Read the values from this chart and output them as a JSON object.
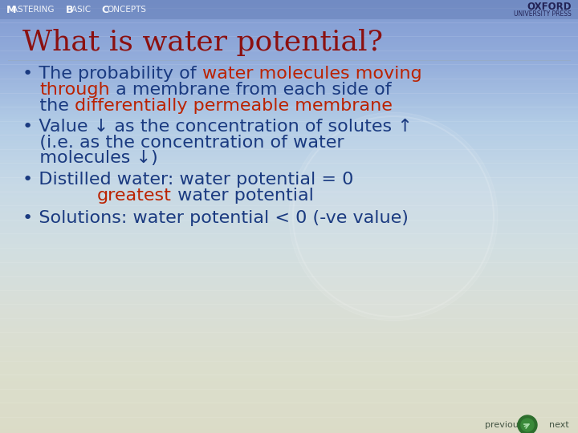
{
  "title": "What is water potential?",
  "title_color": "#8B1010",
  "title_fontsize": 26,
  "header_text": "Mastering Basic Concepts",
  "oxford_line1": "OXFORD",
  "oxford_line2": "UNIVERSITY PRESS",
  "oxford_color": "#222255",
  "blue_color": "#1a3a80",
  "red_color": "#bb2200",
  "bullet_fontsize": 16,
  "nav_fontsize": 8,
  "lines": [
    [
      {
        "text": "• The probability of ",
        "color": "#1a3a80"
      },
      {
        "text": "water molecules moving",
        "color": "#bb2200"
      }
    ],
    [
      {
        "text": "   ",
        "color": "#1a3a80"
      },
      {
        "text": "through",
        "color": "#bb2200"
      },
      {
        "text": " a membrane from each side of",
        "color": "#1a3a80"
      }
    ],
    [
      {
        "text": "   the ",
        "color": "#1a3a80"
      },
      {
        "text": "differentially permeable membrane",
        "color": "#bb2200"
      }
    ],
    [
      {
        "text": "• Value ↓ as the concentration of solutes ↑",
        "color": "#1a3a80"
      }
    ],
    [
      {
        "text": "   (i.e. as the concentration of water",
        "color": "#1a3a80"
      }
    ],
    [
      {
        "text": "   molecules ↓)",
        "color": "#1a3a80"
      }
    ],
    [
      {
        "text": "• Distilled water: water potential = 0",
        "color": "#1a3a80"
      }
    ],
    [
      {
        "text": "             ",
        "color": "#1a3a80"
      },
      {
        "text": "greatest",
        "color": "#bb2200"
      },
      {
        "text": " water potential",
        "color": "#1a3a80"
      }
    ],
    [
      {
        "text": "• Solutions: water potential < 0 (-ve value)",
        "color": "#1a3a80"
      }
    ]
  ]
}
